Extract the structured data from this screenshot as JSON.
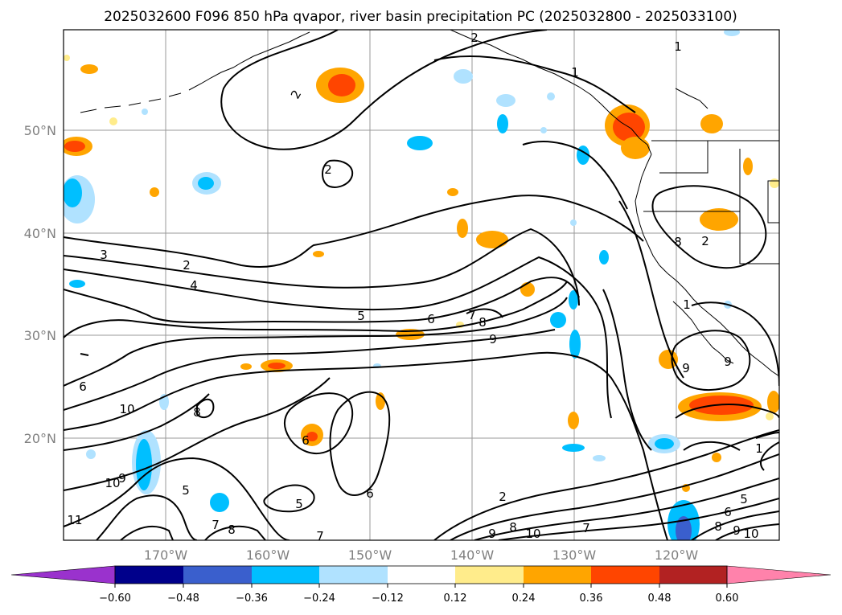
{
  "title": "2025032600 F096 850 hPa qvapor, river basin precipitation PC (2025032800 - 2025033100)",
  "lat_labels": [
    "50°N",
    "40°N",
    "30°N",
    "20°N"
  ],
  "lon_labels": [
    "170°W",
    "160°W",
    "150°W",
    "140°W",
    "130°W",
    "120°W"
  ],
  "colorbar": {
    "colors": [
      "#9a32cd",
      "#00008b",
      "#3a5fcd",
      "#00bfff",
      "#b0e2ff",
      "#ffffff",
      "#ffec8b",
      "#ffa500",
      "#ff4500",
      "#b22222",
      "#ff82ab"
    ],
    "tick_labels": [
      "−0.60",
      "−0.48",
      "−0.36",
      "−0.24",
      "−0.12",
      "0.12",
      "0.24",
      "0.36",
      "0.48",
      "0.60"
    ]
  },
  "contour_labels": [
    "2",
    "2",
    "2",
    "1",
    "3",
    "2",
    "4",
    "5",
    "6",
    "7",
    "8",
    "9",
    "10",
    "8",
    "6",
    "5",
    "6",
    "7",
    "8",
    "9",
    "10",
    "11",
    "10",
    "9",
    "8",
    "7",
    "6",
    "5",
    "2",
    "6",
    "7",
    "8",
    "9",
    "10",
    "2",
    "1",
    "1",
    "9",
    "9",
    "1",
    "8",
    "5"
  ]
}
